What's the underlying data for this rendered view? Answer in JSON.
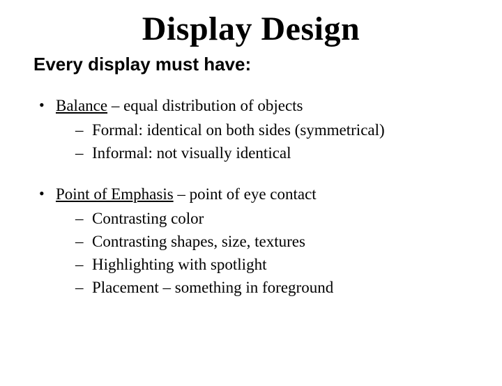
{
  "title": "Display Design",
  "subtitle": "Every display must have:",
  "bullets": [
    {
      "term": "Balance",
      "rest": " – equal distribution of objects",
      "subs": [
        "Formal: identical on both sides (symmetrical)",
        "Informal: not visually identical"
      ]
    },
    {
      "term": "Point of Emphasis",
      "rest": " – point of eye contact",
      "subs": [
        "Contrasting color",
        "Contrasting shapes, size, textures",
        "Highlighting with spotlight",
        "Placement – something in foreground"
      ]
    }
  ],
  "colors": {
    "background": "#ffffff",
    "text": "#000000"
  }
}
